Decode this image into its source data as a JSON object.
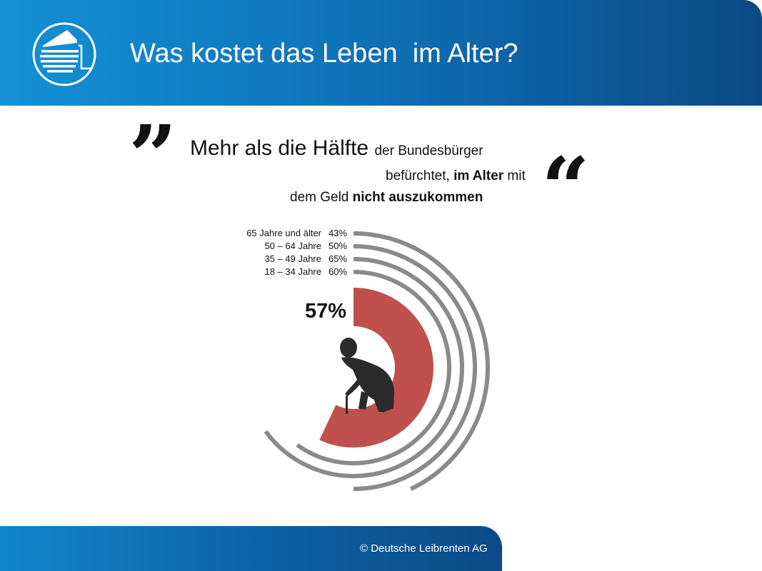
{
  "header": {
    "title": "Was kostet das Leben  im Alter?",
    "logo_icon": "lighthouse-logo-icon"
  },
  "quote": {
    "open_mark": "”",
    "close_mark": "“",
    "line1_big": "Mehr als die Hälfte",
    "line1_small": "der Bundesbürger",
    "line2_pre": "befürchtet,",
    "line2_bold": "im Alter",
    "line2_post": "mit",
    "line3_pre": "dem Geld",
    "line3_bold": "nicht auszukommen"
  },
  "chart_data": {
    "type": "radial-bar",
    "total": {
      "label": "57%",
      "value": 57,
      "color": "#c0504d"
    },
    "series": [
      {
        "name": "65 Jahre und älter",
        "label": "43%",
        "value": 43
      },
      {
        "name": "50 – 64 Jahre",
        "label": "50%",
        "value": 50
      },
      {
        "name": "35 – 49 Jahre",
        "label": "65%",
        "value": 65
      },
      {
        "name": "18 – 34 Jahre",
        "label": "60%",
        "value": 60
      }
    ],
    "ring_color": "#8a8a8a",
    "center_icon": "elderly-person-with-cane-icon"
  },
  "footer": {
    "text": "© Deutsche Leibrenten AG"
  }
}
